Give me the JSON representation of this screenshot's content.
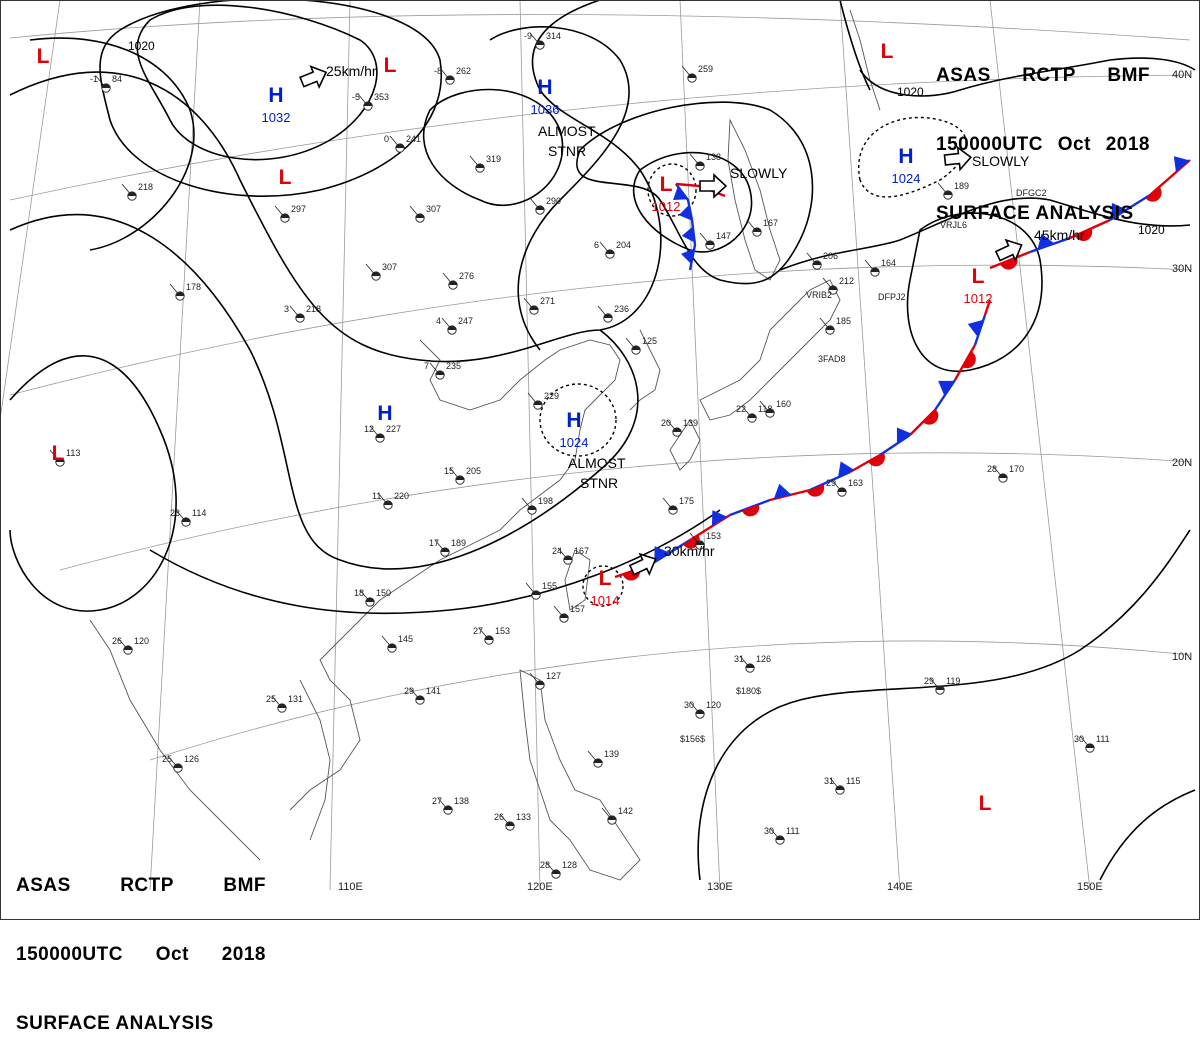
{
  "header": {
    "line1": [
      "ASAS",
      "RCTP",
      "BMF"
    ],
    "line2": [
      "150000UTC",
      "Oct",
      "2018"
    ],
    "line3": "SURFACE ANALYSIS"
  },
  "lat_labels": [
    "40N",
    "30N",
    "20N",
    "10N"
  ],
  "lon_labels": [
    "110E",
    "120E",
    "130E",
    "140E",
    "150E"
  ],
  "isobar_labels": [
    "1020",
    "1020",
    "1020"
  ],
  "pressure_systems": [
    {
      "type": "H",
      "value": "1032"
    },
    {
      "type": "H",
      "value": "1036"
    },
    {
      "type": "H",
      "value": "1024"
    },
    {
      "type": "H",
      "value": "1024"
    },
    {
      "type": "H",
      "value": ""
    },
    {
      "type": "L",
      "value": "1012"
    },
    {
      "type": "L",
      "value": "1012"
    },
    {
      "type": "L",
      "value": "1014"
    },
    {
      "type": "L",
      "value": ""
    },
    {
      "type": "L",
      "value": ""
    },
    {
      "type": "L",
      "value": ""
    },
    {
      "type": "L",
      "value": ""
    },
    {
      "type": "L",
      "value": ""
    },
    {
      "type": "L",
      "value": ""
    }
  ],
  "motion_labels": [
    "25km/hr",
    "SLOWLY",
    "SLOWLY",
    "45km/hr",
    "30km/hr"
  ],
  "annotations": [
    "ALMOST",
    "STNR",
    "ALMOST",
    "STNR"
  ],
  "stations": [
    {
      "t": "-9",
      "p": "314"
    },
    {
      "t": "-8",
      "p": "262"
    },
    {
      "t": "-5",
      "p": "353"
    },
    {
      "t": "-1",
      "p": "84"
    },
    {
      "t": "0",
      "p": "241"
    },
    {
      "t": "",
      "p": "319"
    },
    {
      "t": "",
      "p": "290"
    },
    {
      "t": "",
      "p": "307"
    },
    {
      "t": "",
      "p": "297"
    },
    {
      "t": "",
      "p": "218"
    },
    {
      "t": "",
      "p": "307"
    },
    {
      "t": "",
      "p": "276"
    },
    {
      "t": "",
      "p": "178"
    },
    {
      "t": "3",
      "p": "218"
    },
    {
      "t": "4",
      "p": "247"
    },
    {
      "t": "",
      "p": "271"
    },
    {
      "t": "",
      "p": "236"
    },
    {
      "t": "6",
      "p": "204"
    },
    {
      "t": "",
      "p": "259"
    },
    {
      "t": "",
      "p": "138"
    },
    {
      "t": "",
      "p": "147"
    },
    {
      "t": "",
      "p": "167"
    },
    {
      "t": "",
      "p": "206"
    },
    {
      "t": "",
      "p": "164"
    },
    {
      "t": "",
      "p": "189"
    },
    {
      "t": "",
      "p": "212"
    },
    {
      "t": "",
      "p": "185"
    },
    {
      "t": "7",
      "p": "235"
    },
    {
      "t": "12",
      "p": "227"
    },
    {
      "t": "",
      "p": "229"
    },
    {
      "t": "",
      "p": "125"
    },
    {
      "t": "15",
      "p": "205"
    },
    {
      "t": "11",
      "p": "220"
    },
    {
      "t": "23",
      "p": "114"
    },
    {
      "t": "",
      "p": "113"
    },
    {
      "t": "",
      "p": "198"
    },
    {
      "t": "",
      "p": "175"
    },
    {
      "t": "",
      "p": "153"
    },
    {
      "t": "17",
      "p": "189"
    },
    {
      "t": "24",
      "p": "167"
    },
    {
      "t": "",
      "p": "155"
    },
    {
      "t": "",
      "p": "157"
    },
    {
      "t": "18",
      "p": "150"
    },
    {
      "t": "",
      "p": "145"
    },
    {
      "t": "26",
      "p": "120"
    },
    {
      "t": "27",
      "p": "153"
    },
    {
      "t": "29",
      "p": "141"
    },
    {
      "t": "25",
      "p": "131"
    },
    {
      "t": "",
      "p": "127"
    },
    {
      "t": "31",
      "p": "126"
    },
    {
      "t": "30",
      "p": "120"
    },
    {
      "t": "25",
      "p": "126"
    },
    {
      "t": "",
      "p": "139"
    },
    {
      "t": "27",
      "p": "138"
    },
    {
      "t": "26",
      "p": "133"
    },
    {
      "t": "",
      "p": "142"
    },
    {
      "t": "28",
      "p": "128"
    },
    {
      "t": "29",
      "p": "163"
    },
    {
      "t": "28",
      "p": "170"
    },
    {
      "t": "29",
      "p": "119"
    },
    {
      "t": "31",
      "p": "115"
    },
    {
      "t": "30",
      "p": "111"
    },
    {
      "t": "30",
      "p": "111"
    },
    {
      "t": "",
      "p": "160"
    },
    {
      "t": "20",
      "p": "139"
    },
    {
      "t": "22",
      "p": "118"
    }
  ],
  "station_codes": [
    "VRIB2",
    "DFPJ2",
    "3FAD8",
    "VRJL6",
    "DFGC2",
    "$180$",
    "$156$"
  ],
  "colors": {
    "cold_front": "#1030e0",
    "warm_front": "#e0000a",
    "high": "#0020d0",
    "low": "#e0000a",
    "isobar": "#000000",
    "grid": "#9a9a9a",
    "coast": "#555555"
  }
}
